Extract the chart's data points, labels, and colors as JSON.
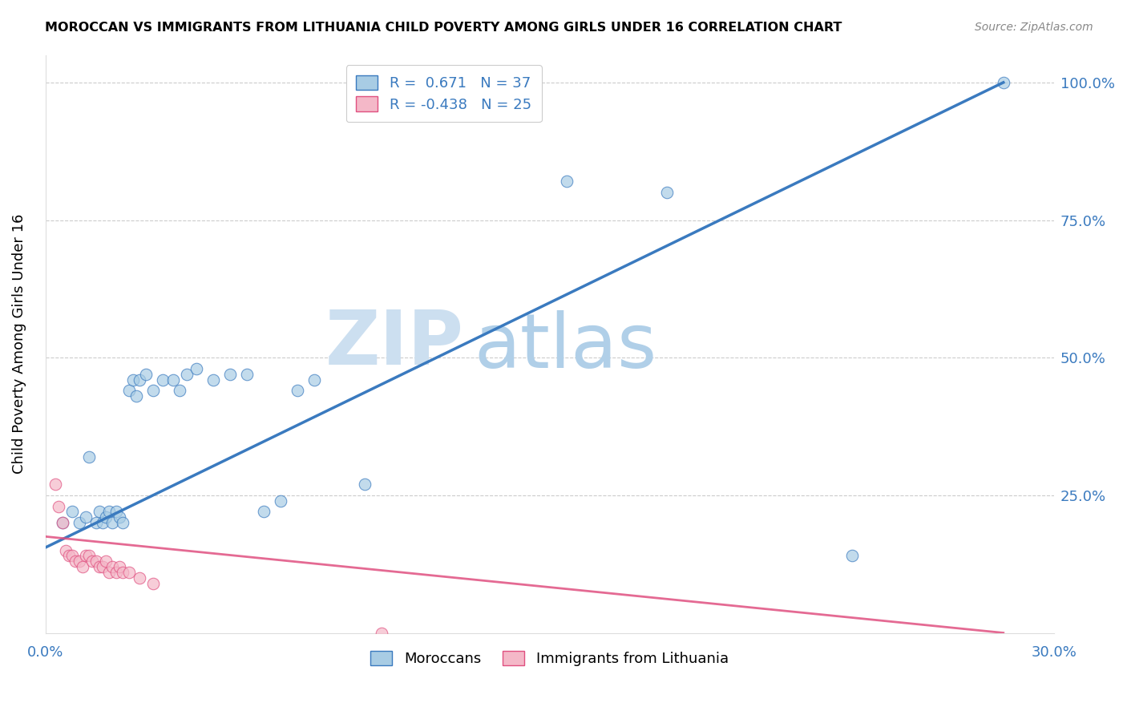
{
  "title": "MOROCCAN VS IMMIGRANTS FROM LITHUANIA CHILD POVERTY AMONG GIRLS UNDER 16 CORRELATION CHART",
  "source": "Source: ZipAtlas.com",
  "ylabel": "Child Poverty Among Girls Under 16",
  "xlim": [
    0.0,
    0.3
  ],
  "ylim": [
    0.0,
    1.05
  ],
  "yticks": [
    0.0,
    0.25,
    0.5,
    0.75,
    1.0
  ],
  "ytick_labels": [
    "",
    "25.0%",
    "50.0%",
    "75.0%",
    "100.0%"
  ],
  "xticks": [
    0.0,
    0.05,
    0.1,
    0.15,
    0.2,
    0.25,
    0.3
  ],
  "xtick_labels": [
    "0.0%",
    "",
    "",
    "",
    "",
    "",
    "30.0%"
  ],
  "blue_color": "#a8cce4",
  "pink_color": "#f4b8c8",
  "blue_line_color": "#3a7abf",
  "pink_line_color": "#e05080",
  "R_blue": 0.671,
  "N_blue": 37,
  "R_pink": -0.438,
  "N_pink": 25,
  "watermark_zip": "ZIP",
  "watermark_atlas": "atlas",
  "legend_label_blue": "Moroccans",
  "legend_label_pink": "Immigrants from Lithuania",
  "blue_scatter_x": [
    0.005,
    0.008,
    0.01,
    0.012,
    0.013,
    0.015,
    0.016,
    0.017,
    0.018,
    0.019,
    0.02,
    0.021,
    0.022,
    0.023,
    0.025,
    0.026,
    0.027,
    0.028,
    0.03,
    0.032,
    0.035,
    0.038,
    0.04,
    0.042,
    0.045,
    0.05,
    0.055,
    0.06,
    0.065,
    0.07,
    0.075,
    0.08,
    0.095,
    0.155,
    0.185,
    0.24,
    0.285
  ],
  "blue_scatter_y": [
    0.2,
    0.22,
    0.2,
    0.21,
    0.32,
    0.2,
    0.22,
    0.2,
    0.21,
    0.22,
    0.2,
    0.22,
    0.21,
    0.2,
    0.44,
    0.46,
    0.43,
    0.46,
    0.47,
    0.44,
    0.46,
    0.46,
    0.44,
    0.47,
    0.48,
    0.46,
    0.47,
    0.47,
    0.22,
    0.24,
    0.44,
    0.46,
    0.27,
    0.82,
    0.8,
    0.14,
    1.0
  ],
  "pink_scatter_x": [
    0.003,
    0.004,
    0.005,
    0.006,
    0.007,
    0.008,
    0.009,
    0.01,
    0.011,
    0.012,
    0.013,
    0.014,
    0.015,
    0.016,
    0.017,
    0.018,
    0.019,
    0.02,
    0.021,
    0.022,
    0.023,
    0.025,
    0.028,
    0.032,
    0.1
  ],
  "pink_scatter_y": [
    0.27,
    0.23,
    0.2,
    0.15,
    0.14,
    0.14,
    0.13,
    0.13,
    0.12,
    0.14,
    0.14,
    0.13,
    0.13,
    0.12,
    0.12,
    0.13,
    0.11,
    0.12,
    0.11,
    0.12,
    0.11,
    0.11,
    0.1,
    0.09,
    0.0
  ],
  "blue_line_x0": 0.0,
  "blue_line_y0": 0.155,
  "blue_line_x1": 0.285,
  "blue_line_y1": 1.0,
  "pink_line_x0": 0.0,
  "pink_line_y0": 0.175,
  "pink_line_x1": 0.285,
  "pink_line_y1": 0.0
}
